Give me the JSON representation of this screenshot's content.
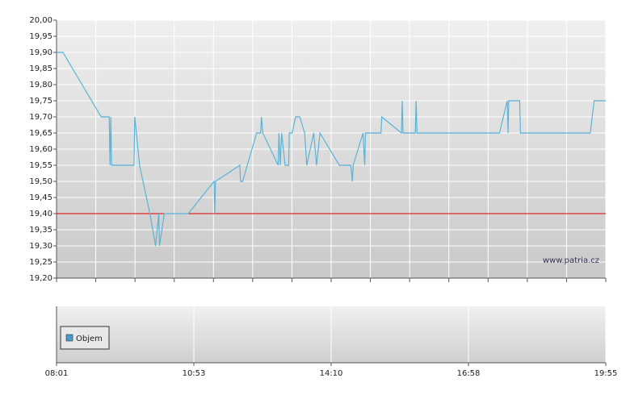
{
  "chart_data": {
    "type": "line",
    "watermark": "www.patria.cz",
    "x": [
      481,
      489,
      537,
      547,
      548,
      549,
      550,
      578,
      579,
      585,
      598,
      605,
      609,
      610,
      616,
      646,
      682,
      683,
      684,
      719,
      720,
      723,
      743,
      749,
      750,
      752,
      774,
      775,
      777,
      779,
      784,
      789,
      790,
      794,
      799,
      805,
      812,
      815,
      825,
      829,
      834,
      860,
      874,
      876,
      877,
      889,
      891,
      892,
      911,
      912,
      936,
      937,
      938,
      953,
      954,
      955,
      1058,
      1068,
      1069,
      1070,
      1084,
      1085,
      1175,
      1180,
      1195
    ],
    "series": [
      {
        "color": "#5ab4d8",
        "values": [
          19.9,
          19.9,
          19.7,
          19.7,
          19.55,
          19.7,
          19.55,
          19.55,
          19.7,
          19.55,
          19.4,
          19.3,
          19.4,
          19.3,
          19.4,
          19.4,
          19.5,
          19.4,
          19.5,
          19.55,
          19.5,
          19.5,
          19.65,
          19.65,
          19.7,
          19.65,
          19.55,
          19.65,
          19.55,
          19.65,
          19.55,
          19.55,
          19.65,
          19.65,
          19.7,
          19.7,
          19.65,
          19.55,
          19.65,
          19.55,
          19.65,
          19.55,
          19.55,
          19.5,
          19.55,
          19.65,
          19.55,
          19.65,
          19.65,
          19.7,
          19.65,
          19.75,
          19.65,
          19.65,
          19.75,
          19.65,
          19.65,
          19.75,
          19.65,
          19.75,
          19.75,
          19.65,
          19.65,
          19.75,
          19.75
        ]
      }
    ],
    "reference_line": {
      "value": 19.4,
      "color": "#e00000"
    },
    "volume": {
      "name": "Objem",
      "color": "#4a9cc9"
    },
    "xlim": [
      481,
      1195
    ],
    "xticks": [
      {
        "value": 481,
        "label": "08:01"
      },
      {
        "value": 653,
        "label": "10:53"
      },
      {
        "value": 850,
        "label": "14:10"
      },
      {
        "value": 1018,
        "label": "16:58"
      },
      {
        "value": 1195,
        "label": "19:55"
      }
    ],
    "ylim": [
      19.2,
      20.0
    ],
    "yticks": [
      {
        "value": 20.0,
        "label": "20,00"
      },
      {
        "value": 19.95,
        "label": "19,95"
      },
      {
        "value": 19.9,
        "label": "19,90"
      },
      {
        "value": 19.85,
        "label": "19,85"
      },
      {
        "value": 19.8,
        "label": "19,80"
      },
      {
        "value": 19.75,
        "label": "19,75"
      },
      {
        "value": 19.7,
        "label": "19,70"
      },
      {
        "value": 19.65,
        "label": "19,65"
      },
      {
        "value": 19.6,
        "label": "19,60"
      },
      {
        "value": 19.55,
        "label": "19,55"
      },
      {
        "value": 19.5,
        "label": "19,50"
      },
      {
        "value": 19.45,
        "label": "19,45"
      },
      {
        "value": 19.4,
        "label": "19,40"
      },
      {
        "value": 19.35,
        "label": "19,35"
      },
      {
        "value": 19.3,
        "label": "19,30"
      },
      {
        "value": 19.25,
        "label": "19,25"
      },
      {
        "value": 19.2,
        "label": "19,20"
      }
    ],
    "grid": true
  }
}
